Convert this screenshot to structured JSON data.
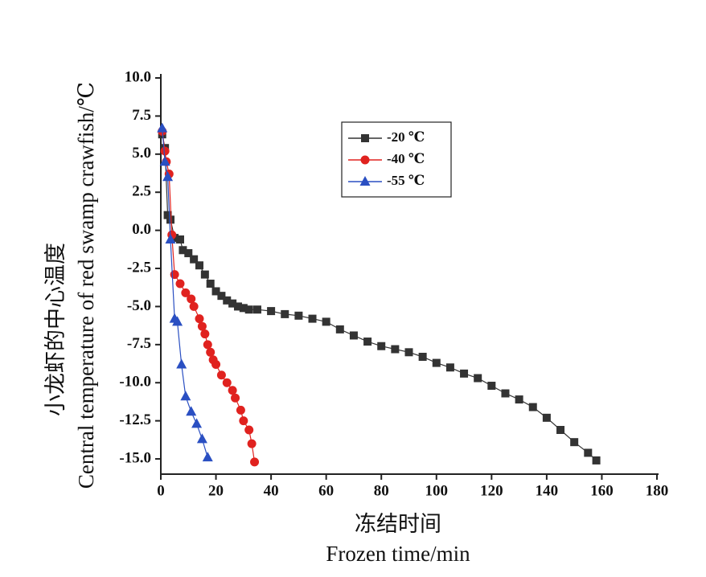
{
  "chart_data": {
    "type": "line",
    "xlabel_cn": "冻结时间",
    "xlabel": "Frozen time/min",
    "ylabel_cn": "小龙虾的中心温度",
    "ylabel": "Central temperature of red swamp crawfish/℃",
    "xlim": [
      0,
      180
    ],
    "xticks": [
      0,
      20,
      40,
      60,
      80,
      100,
      120,
      140,
      160,
      180
    ],
    "ylim": [
      -16,
      10
    ],
    "yticks": [
      {
        "value": 10,
        "label": "10.0"
      },
      {
        "value": 7.5,
        "label": "7.5"
      },
      {
        "value": 5,
        "label": "5.0"
      },
      {
        "value": 2.5,
        "label": "2.5"
      },
      {
        "value": 0,
        "label": "0.0"
      },
      {
        "value": -2.5,
        "label": "-2.5"
      },
      {
        "value": -5,
        "label": "-5.0"
      },
      {
        "value": -7.5,
        "label": "-7.5"
      },
      {
        "value": -10,
        "label": "-10.0"
      },
      {
        "value": -12.5,
        "label": "-12.5"
      },
      {
        "value": -15,
        "label": "-15.0"
      }
    ],
    "legend": "upper center",
    "series": [
      {
        "name": "-20 ℃",
        "color": "#333333",
        "marker": "square",
        "x": [
          0.5,
          1.5,
          2.5,
          3.5,
          5,
          7,
          8,
          10,
          12,
          14,
          16,
          18,
          20,
          22,
          24,
          26,
          28,
          30,
          32,
          35,
          40,
          45,
          50,
          55,
          60,
          65,
          70,
          75,
          80,
          85,
          90,
          95,
          100,
          105,
          110,
          115,
          120,
          125,
          130,
          135,
          140,
          145,
          150,
          155,
          158
        ],
        "values": [
          6.3,
          5.4,
          1.0,
          0.7,
          -0.5,
          -0.6,
          -1.3,
          -1.5,
          -1.9,
          -2.3,
          -2.9,
          -3.5,
          -4.0,
          -4.3,
          -4.6,
          -4.8,
          -5.0,
          -5.1,
          -5.2,
          -5.2,
          -5.3,
          -5.5,
          -5.6,
          -5.8,
          -6.0,
          -6.5,
          -6.9,
          -7.3,
          -7.6,
          -7.8,
          -8.0,
          -8.3,
          -8.7,
          -9.0,
          -9.4,
          -9.7,
          -10.2,
          -10.7,
          -11.1,
          -11.6,
          -12.3,
          -13.1,
          -13.9,
          -14.6,
          -15.1
        ]
      },
      {
        "name": "-40 ℃",
        "color": "#e0221f",
        "marker": "circle",
        "x": [
          0.5,
          1.5,
          2,
          3,
          4,
          5,
          7,
          9,
          11,
          12,
          14,
          15,
          16,
          17,
          18,
          19,
          20,
          22,
          24,
          26,
          27,
          29,
          30,
          32,
          33,
          34
        ],
        "values": [
          6.5,
          5.2,
          4.5,
          3.7,
          -0.3,
          -2.9,
          -3.5,
          -4.1,
          -4.5,
          -5.0,
          -5.8,
          -6.3,
          -6.8,
          -7.5,
          -8.0,
          -8.5,
          -8.8,
          -9.5,
          -10.0,
          -10.5,
          -11.0,
          -11.8,
          -12.5,
          -13.1,
          -14.0,
          -15.2
        ]
      },
      {
        "name": "-55 ℃",
        "color": "#2a4fc2",
        "marker": "triangle",
        "x": [
          0.5,
          1.5,
          2.5,
          3.5,
          5,
          6,
          7.5,
          9,
          11,
          13,
          15,
          17
        ],
        "values": [
          6.7,
          4.5,
          3.5,
          -0.6,
          -5.8,
          -6.0,
          -8.8,
          -10.9,
          -11.9,
          -12.7,
          -13.7,
          -14.9
        ]
      }
    ]
  }
}
